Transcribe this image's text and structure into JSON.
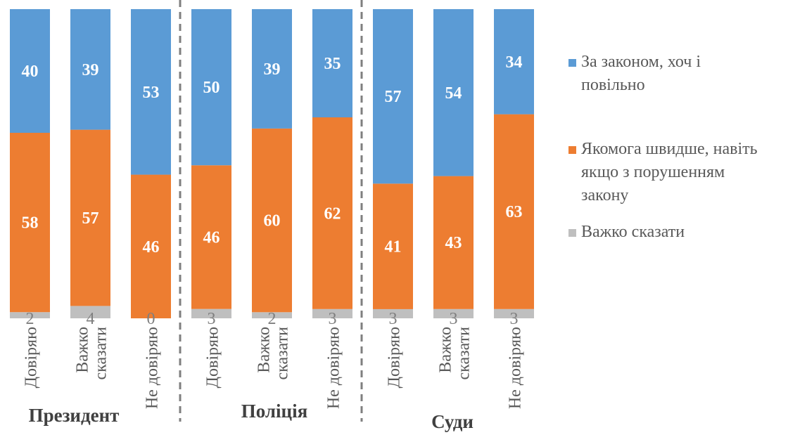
{
  "chart_data": {
    "type": "bar",
    "stacked": true,
    "normalized": true,
    "groups": [
      "Президент",
      "Поліція",
      "Суди"
    ],
    "categories": [
      "Довіряю",
      "Важко сказати",
      "Не довіряю",
      "Довіряю",
      "Важко сказати",
      "Не довіряю",
      "Довіряю",
      "Важко сказати",
      "Не довіряю"
    ],
    "category_groups": [
      0,
      0,
      0,
      1,
      1,
      1,
      2,
      2,
      2
    ],
    "series": [
      {
        "name": "За законом, хоч і повільно",
        "color": "#5B9BD5",
        "values": [
          40,
          39,
          53,
          50,
          39,
          35,
          57,
          54,
          34
        ]
      },
      {
        "name": "Якомога швидше, навіть якщо з порушенням закону",
        "color": "#ED7D31",
        "values": [
          58,
          57,
          46,
          46,
          60,
          62,
          41,
          43,
          63
        ]
      },
      {
        "name": "Важко сказати",
        "color": "#BFBFBF",
        "values": [
          2,
          4,
          0,
          3,
          2,
          3,
          3,
          3,
          3
        ]
      }
    ],
    "ylim": [
      0,
      100
    ],
    "legend": "right",
    "grid": false
  },
  "legend_lines": [
    [
      "За законом, хоч і",
      "повільно"
    ],
    [
      "Якомога швидше, навіть",
      "якщо з порушенням",
      "закону"
    ],
    [
      "Важко сказати"
    ]
  ]
}
